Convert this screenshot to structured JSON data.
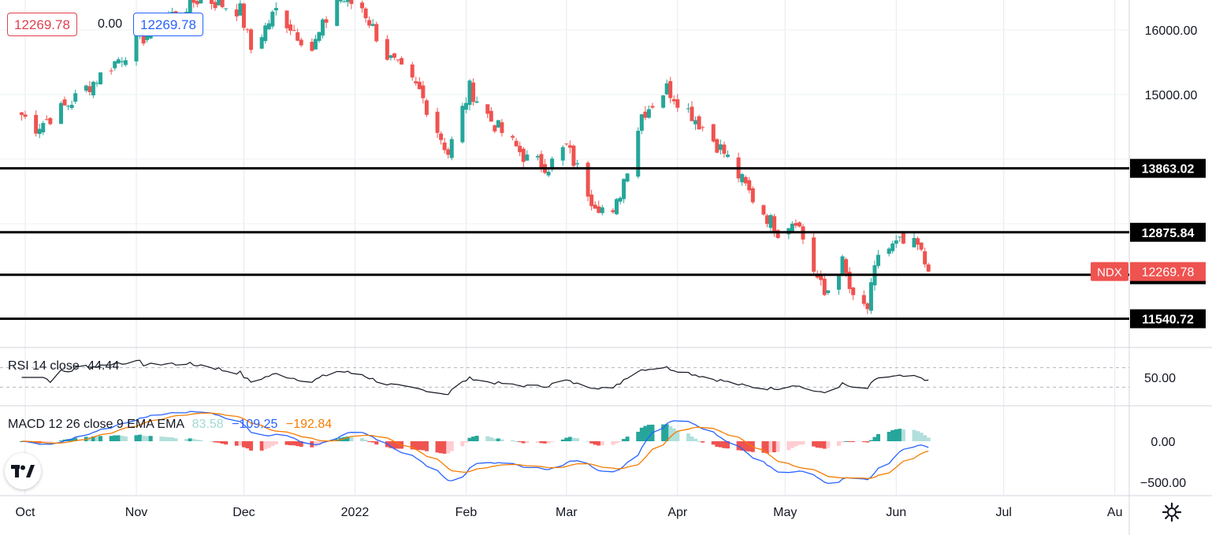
{
  "legend": {
    "price_left": "12269.78",
    "change": "0.00",
    "price_right": "12269.78",
    "price_left_color": "#e0424f",
    "price_right_color": "#2962ff"
  },
  "rsi_legend": {
    "label": "RSI 14 close",
    "value": "44.44"
  },
  "macd_legend": {
    "label": "MACD 12 26 close 9 EMA EMA",
    "hist": "83.58",
    "macd": "−109.25",
    "signal": "−192.84"
  },
  "colors": {
    "up": "#26a69a",
    "down": "#ef5350",
    "macd_line": "#2962ff",
    "signal_line": "#f57c00",
    "tag_bg": "#000000",
    "last_tag_bg": "#ef5350"
  },
  "symbol_tag": "NDX",
  "chart_data": [
    {
      "type": "candlestick",
      "symbol": "NDX",
      "price_axis_ticks": [
        "16000.00",
        "15000.00"
      ],
      "price_axis_range": [
        11200,
        16450
      ],
      "time_axis_labels": [
        "Oct",
        "Nov",
        "Dec",
        "2022",
        "Feb",
        "Mar",
        "Apr",
        "May",
        "Jun",
        "Jul",
        "Au"
      ],
      "horizontal_levels": [
        {
          "label": "13863.02",
          "value": 13863.02
        },
        {
          "label": "12875.84",
          "value": 12875.84
        },
        {
          "label": "12220.22",
          "value": 12220.22
        },
        {
          "label": "11540.72",
          "value": 11540.72
        }
      ],
      "last_price": {
        "label": "12269.78",
        "value": 12269.78
      },
      "anchor_closes": [
        {
          "date": "2021-09-30",
          "close": 14690
        },
        {
          "date": "2021-10-04",
          "close": 14500
        },
        {
          "date": "2021-10-13",
          "close": 14850
        },
        {
          "date": "2021-10-22",
          "close": 15300
        },
        {
          "date": "2021-11-01",
          "close": 15800
        },
        {
          "date": "2021-11-10",
          "close": 16200
        },
        {
          "date": "2021-11-19",
          "close": 16500
        },
        {
          "date": "2021-11-30",
          "close": 16300
        },
        {
          "date": "2021-12-03",
          "close": 15700
        },
        {
          "date": "2021-12-10",
          "close": 16300
        },
        {
          "date": "2021-12-20",
          "close": 15700
        },
        {
          "date": "2021-12-27",
          "close": 16500
        },
        {
          "date": "2022-01-03",
          "close": 16350
        },
        {
          "date": "2022-01-10",
          "close": 15600
        },
        {
          "date": "2022-01-19",
          "close": 15050
        },
        {
          "date": "2022-01-27",
          "close": 14100
        },
        {
          "date": "2022-02-02",
          "close": 15100
        },
        {
          "date": "2022-02-08",
          "close": 14600
        },
        {
          "date": "2022-02-18",
          "close": 14000
        },
        {
          "date": "2022-02-24",
          "close": 13900
        },
        {
          "date": "2022-03-01",
          "close": 14200
        },
        {
          "date": "2022-03-08",
          "close": 13400
        },
        {
          "date": "2022-03-14",
          "close": 13100
        },
        {
          "date": "2022-03-22",
          "close": 14700
        },
        {
          "date": "2022-03-29",
          "close": 15100
        },
        {
          "date": "2022-04-05",
          "close": 14700
        },
        {
          "date": "2022-04-14",
          "close": 14100
        },
        {
          "date": "2022-04-22",
          "close": 13400
        },
        {
          "date": "2022-04-29",
          "close": 12900
        },
        {
          "date": "2022-05-04",
          "close": 13100
        },
        {
          "date": "2022-05-09",
          "close": 12300
        },
        {
          "date": "2022-05-12",
          "close": 11900
        },
        {
          "date": "2022-05-17",
          "close": 12400
        },
        {
          "date": "2022-05-20",
          "close": 11800
        },
        {
          "date": "2022-05-24",
          "close": 11700
        },
        {
          "date": "2022-05-27",
          "close": 12550
        },
        {
          "date": "2022-06-02",
          "close": 12700
        },
        {
          "date": "2022-06-07",
          "close": 12650
        },
        {
          "date": "2022-06-10",
          "close": 12269.78
        }
      ]
    },
    {
      "type": "line",
      "name": "RSI 14 close",
      "axis_tick": "50.00",
      "ylim": [
        0,
        100
      ],
      "bands": [
        70,
        30
      ],
      "last_value": 44.44
    },
    {
      "type": "bar",
      "name": "MACD 12 26 close 9 EMA EMA",
      "axis_ticks": [
        "0.00",
        "−500.00"
      ],
      "series": [
        {
          "name": "MACD",
          "last_value": -109.25
        },
        {
          "name": "Signal",
          "last_value": -192.84
        },
        {
          "name": "Histogram",
          "last_value": 83.58
        }
      ]
    }
  ]
}
